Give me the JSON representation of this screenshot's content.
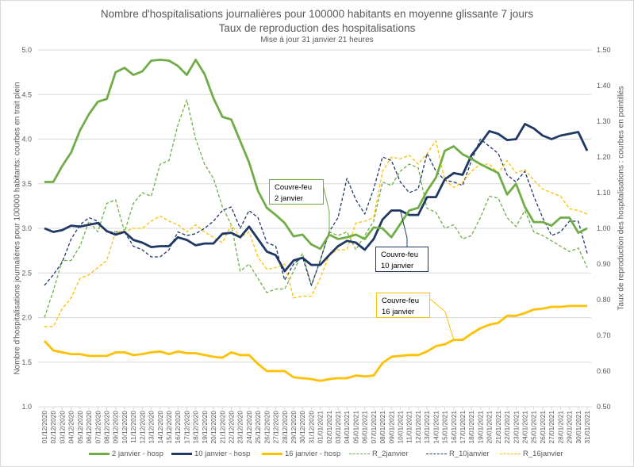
{
  "chart_data": {
    "type": "line",
    "title": "Nombre d'hospitalisations journalières pour 100000 habitants en moyenne glissante 7 jours",
    "subtitle": "Taux de reproduction des hospitalisations",
    "update_note": "Mise à jour 31 janvier 21 heures",
    "ylabel_left": "Nombre d'hospitalisations journalières pour 100000 habitants: courbes en trait plein",
    "ylabel_right": "Taux de reproduction des hospitalisations : courbes en pointillés",
    "ylim_left": [
      1.0,
      5.0
    ],
    "ylim_right": [
      0.5,
      1.5
    ],
    "yticks_left": [
      "1.0",
      "1.5",
      "2.0",
      "2.5",
      "3.0",
      "3.5",
      "4.0",
      "4.5",
      "5.0"
    ],
    "yticks_right": [
      "0.50",
      "0.60",
      "0.70",
      "0.80",
      "0.90",
      "1.00",
      "1.10",
      "1.20",
      "1.30",
      "1.40",
      "1.50"
    ],
    "grid": true,
    "legend_position": "bottom",
    "x": [
      "01/12/2020",
      "02/12/2020",
      "03/12/2020",
      "04/12/2020",
      "05/12/2020",
      "06/12/2020",
      "07/12/2020",
      "08/12/2020",
      "09/12/2020",
      "10/12/2020",
      "11/12/2020",
      "12/12/2020",
      "13/12/2020",
      "14/12/2020",
      "15/12/2020",
      "16/12/2020",
      "17/12/2020",
      "18/12/2020",
      "19/12/2020",
      "20/12/2020",
      "21/12/2020",
      "22/12/2020",
      "23/12/2020",
      "24/12/2020",
      "25/12/2020",
      "26/12/2020",
      "27/12/2020",
      "28/12/2020",
      "29/12/2020",
      "30/12/2020",
      "31/12/2020",
      "01/01/2021",
      "02/01/2021",
      "03/01/2021",
      "04/01/2021",
      "05/01/2021",
      "06/01/2021",
      "07/01/2021",
      "08/01/2021",
      "09/01/2021",
      "10/01/2021",
      "11/01/2021",
      "12/01/2021",
      "13/01/2021",
      "14/01/2021",
      "15/01/2021",
      "16/01/2021",
      "17/01/2021",
      "18/01/2021",
      "19/01/2021",
      "20/01/2021",
      "21/01/2021",
      "22/01/2021",
      "23/01/2021",
      "24/01/2021",
      "25/01/2021",
      "26/01/2021",
      "27/01/2021",
      "28/01/2021",
      "29/01/2021",
      "30/01/2021",
      "31/01/2021"
    ],
    "series": [
      {
        "name": "2 janvier - hosp",
        "axis": "left",
        "style": "solid",
        "color": "#70ad47",
        "values": [
          3.52,
          3.52,
          3.7,
          3.85,
          4.1,
          4.28,
          4.42,
          4.45,
          4.75,
          4.8,
          4.72,
          4.76,
          4.88,
          4.89,
          4.88,
          4.82,
          4.72,
          4.89,
          4.73,
          4.46,
          4.25,
          4.22,
          3.98,
          3.74,
          3.42,
          3.23,
          3.15,
          3.06,
          2.91,
          2.93,
          2.82,
          2.77,
          2.93,
          2.88,
          2.9,
          2.93,
          2.88,
          3.01,
          3.0,
          2.9,
          3.05,
          3.2,
          3.23,
          3.42,
          3.57,
          3.87,
          3.92,
          3.83,
          3.78,
          3.72,
          3.67,
          3.62,
          3.38,
          3.5,
          3.24,
          3.07,
          3.07,
          3.03,
          3.12,
          3.12,
          2.95,
          3.0
        ]
      },
      {
        "name": "10 janvier - hosp",
        "axis": "left",
        "style": "solid",
        "color": "#1f3864",
        "values": [
          3.0,
          2.96,
          2.98,
          3.03,
          3.02,
          3.04,
          3.06,
          2.97,
          2.93,
          2.96,
          2.87,
          2.84,
          2.79,
          2.8,
          2.8,
          2.9,
          2.87,
          2.81,
          2.83,
          2.83,
          2.94,
          2.95,
          2.9,
          3.02,
          2.88,
          2.74,
          2.7,
          2.52,
          2.64,
          2.67,
          2.59,
          2.59,
          2.7,
          2.8,
          2.86,
          2.84,
          2.76,
          2.88,
          3.1,
          3.2,
          3.2,
          3.15,
          3.15,
          3.35,
          3.35,
          3.55,
          3.62,
          3.6,
          3.82,
          3.95,
          4.09,
          4.06,
          3.99,
          4.0,
          4.17,
          4.12,
          4.04,
          4.0,
          4.04,
          4.06,
          4.08,
          3.87
        ]
      },
      {
        "name": "16 janvier - hosp",
        "axis": "left",
        "style": "solid",
        "color": "#ffc000",
        "values": [
          1.74,
          1.63,
          1.61,
          1.59,
          1.59,
          1.57,
          1.57,
          1.57,
          1.61,
          1.61,
          1.58,
          1.59,
          1.61,
          1.62,
          1.59,
          1.62,
          1.6,
          1.6,
          1.58,
          1.56,
          1.55,
          1.61,
          1.58,
          1.58,
          1.48,
          1.4,
          1.4,
          1.4,
          1.33,
          1.32,
          1.31,
          1.29,
          1.31,
          1.32,
          1.32,
          1.35,
          1.34,
          1.35,
          1.49,
          1.56,
          1.57,
          1.58,
          1.58,
          1.62,
          1.68,
          1.7,
          1.75,
          1.75,
          1.82,
          1.88,
          1.92,
          1.94,
          2.02,
          2.02,
          2.05,
          2.09,
          2.1,
          2.12,
          2.12,
          2.13,
          2.13,
          2.13
        ]
      },
      {
        "name": "R_2janvier",
        "axis": "right",
        "style": "dashed",
        "color": "#70ad47",
        "values": [
          0.75,
          0.825,
          0.91,
          0.91,
          0.95,
          1.02,
          0.99,
          1.07,
          1.08,
          0.99,
          1.07,
          1.1,
          1.09,
          1.18,
          1.19,
          1.29,
          1.36,
          1.25,
          1.18,
          1.14,
          1.06,
          1.01,
          0.88,
          0.9,
          0.86,
          0.82,
          0.83,
          0.83,
          0.88,
          0.93,
          0.84,
          0.91,
          0.99,
          0.98,
          0.99,
          0.94,
          0.98,
          1.02,
          1.13,
          1.12,
          1.16,
          1.18,
          1.17,
          1.056,
          1.045,
          1.0,
          1.01,
          0.97,
          0.98,
          1.03,
          1.09,
          1.085,
          1.03,
          1.005,
          1.05,
          0.99,
          0.98,
          0.965,
          0.95,
          0.935,
          0.945,
          0.89
        ]
      },
      {
        "name": "R_10janvier",
        "axis": "right",
        "style": "dashed",
        "color": "#1f3864",
        "values": [
          0.84,
          0.87,
          0.905,
          0.97,
          1.01,
          1.03,
          1.02,
          0.99,
          0.99,
          0.99,
          0.95,
          0.94,
          0.92,
          0.92,
          0.94,
          0.99,
          0.98,
          0.985,
          1.0,
          1.02,
          1.05,
          1.06,
          1.0,
          1.05,
          1.03,
          0.96,
          0.95,
          0.855,
          0.9,
          0.92,
          0.84,
          0.91,
          0.99,
          1.03,
          1.14,
          1.08,
          1.04,
          1.11,
          1.2,
          1.19,
          1.13,
          1.1,
          1.11,
          1.21,
          1.16,
          1.135,
          1.13,
          1.12,
          1.19,
          1.25,
          1.23,
          1.21,
          1.15,
          1.13,
          1.16,
          1.09,
          1.03,
          0.98,
          0.99,
          1.02,
          1.02,
          0.93
        ]
      },
      {
        "name": "R_16janvier",
        "axis": "right",
        "style": "dashed",
        "color": "#ffc000",
        "values": [
          0.725,
          0.725,
          0.775,
          0.805,
          0.86,
          0.87,
          0.89,
          0.91,
          0.99,
          0.99,
          1.0,
          1.0,
          1.02,
          1.035,
          1.02,
          1.01,
          0.99,
          1.01,
          0.99,
          0.975,
          0.96,
          1.01,
          0.975,
          0.99,
          0.92,
          0.885,
          0.89,
          0.9,
          0.805,
          0.81,
          0.81,
          0.86,
          0.925,
          0.94,
          0.94,
          1.015,
          1.02,
          1.03,
          1.16,
          1.2,
          1.195,
          1.205,
          1.18,
          1.21,
          1.245,
          1.135,
          1.115,
          1.13,
          1.16,
          1.18,
          1.18,
          1.155,
          1.19,
          1.155,
          1.165,
          1.135,
          1.11,
          1.1,
          1.09,
          1.055,
          1.05,
          1.04
        ]
      }
    ],
    "annotations": [
      {
        "line1": "Couvre-feu",
        "line2": "2 janvier",
        "color": "#70ad47",
        "target_date": "02/01/2021"
      },
      {
        "line1": "Couvre-feu",
        "line2": "10 janvier",
        "color": "#1f3864",
        "target_date": "10/01/2021"
      },
      {
        "line1": "Couvre-feu",
        "line2": "16 janvier",
        "color": "#ffc000",
        "target_date": "16/01/2021"
      }
    ]
  }
}
